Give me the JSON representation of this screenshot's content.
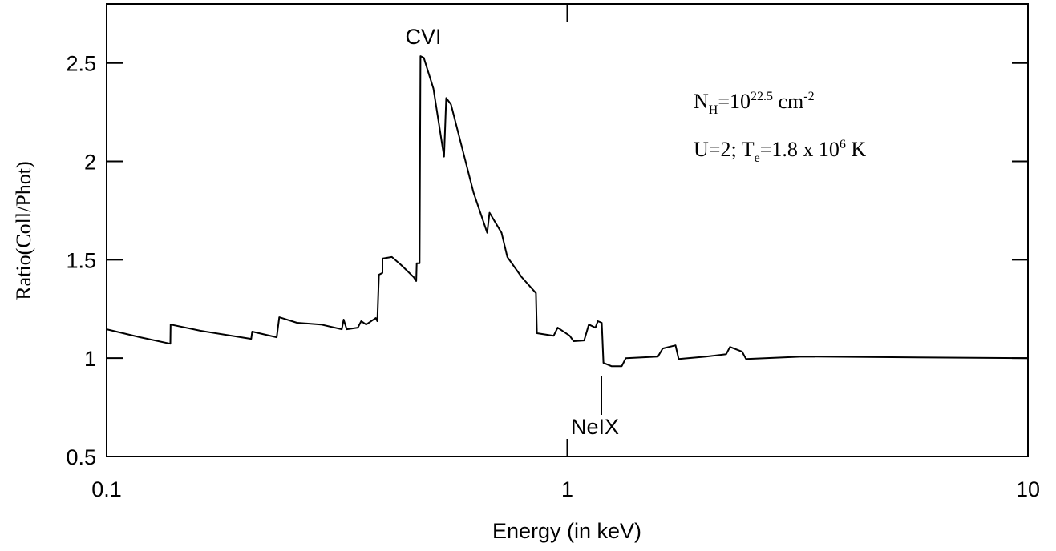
{
  "chart_data": {
    "type": "line",
    "x_label": "Energy (in keV)",
    "y_label": "Ratio(Coll/Phot)",
    "xscale": "log",
    "xlim": [
      0.1,
      10
    ],
    "xticks": [
      0.1,
      1,
      10
    ],
    "ylim": [
      0.5,
      2.8
    ],
    "yticks": [
      0.5,
      1,
      1.5,
      2,
      2.5
    ],
    "annotations": [
      "CVI",
      "NeIX"
    ],
    "text_block": [
      [
        {
          "text": "N"
        },
        {
          "text": "H",
          "shift": "sub"
        },
        {
          "text": "=10"
        },
        {
          "text": "22.5",
          "shift": "sup"
        },
        {
          "text": " cm"
        },
        {
          "text": "-2",
          "shift": "sup"
        }
      ],
      [
        {
          "text": "U=2; T"
        },
        {
          "text": "e",
          "shift": "sub"
        },
        {
          "text": "=1.8 x 10"
        },
        {
          "text": "6",
          "shift": "sup"
        },
        {
          "text": " K"
        }
      ]
    ],
    "series": [
      {
        "color": "#000000",
        "x": [
          0.1,
          0.1183,
          0.1375,
          0.1377,
          0.16,
          0.206,
          0.207,
          0.234,
          0.237,
          0.259,
          0.292,
          0.324,
          0.327,
          0.332,
          0.351,
          0.357,
          0.366,
          0.384,
          0.387,
          0.39,
          0.397,
          0.397,
          0.416,
          0.436,
          0.464,
          0.47,
          0.471,
          0.478,
          0.48,
          0.488,
          0.512,
          0.54,
          0.546,
          0.559,
          0.626,
          0.67,
          0.678,
          0.72,
          0.741,
          0.796,
          0.855,
          0.859,
          0.934,
          0.953,
          1.012,
          1.032,
          1.088,
          1.114,
          1.151,
          1.165,
          1.188,
          1.198,
          1.247,
          1.313,
          1.34,
          1.573,
          1.611,
          1.718,
          1.745,
          2.0,
          2.212,
          2.255,
          2.396,
          2.443,
          3.236,
          10
        ],
        "values": [
          1.147,
          1.106,
          1.073,
          1.171,
          1.139,
          1.098,
          1.135,
          1.106,
          1.208,
          1.18,
          1.171,
          1.147,
          1.196,
          1.147,
          1.155,
          1.188,
          1.171,
          1.204,
          1.188,
          1.424,
          1.433,
          1.506,
          1.514,
          1.473,
          1.412,
          1.392,
          1.482,
          1.482,
          2.535,
          2.527,
          2.371,
          2.024,
          2.322,
          2.29,
          1.841,
          1.637,
          1.739,
          1.637,
          1.514,
          1.412,
          1.331,
          1.127,
          1.114,
          1.155,
          1.114,
          1.086,
          1.09,
          1.171,
          1.155,
          1.188,
          1.18,
          0.976,
          0.959,
          0.959,
          1.0,
          1.008,
          1.049,
          1.065,
          0.996,
          1.008,
          1.02,
          1.057,
          1.033,
          0.996,
          1.008,
          1.0
        ]
      }
    ]
  }
}
